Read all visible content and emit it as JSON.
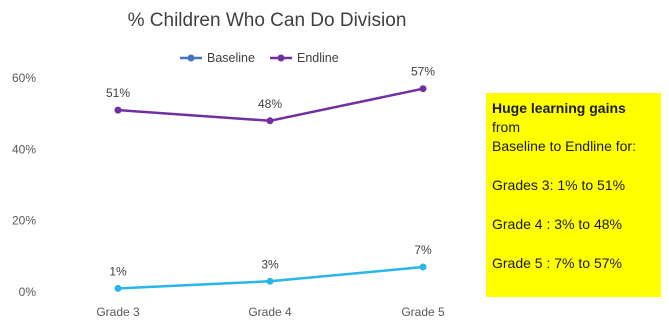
{
  "chart_data": {
    "type": "line",
    "title": "% Children Who Can Do Division",
    "categories": [
      "Grade 3",
      "Grade 4",
      "Grade 5"
    ],
    "series": [
      {
        "name": "Baseline",
        "values": [
          1,
          3,
          7
        ],
        "labels": [
          "1%",
          "3%",
          "7%"
        ],
        "color": "#29b6e8",
        "legend_color": "#4472c4"
      },
      {
        "name": "Endline",
        "values": [
          51,
          48,
          57
        ],
        "labels": [
          "51%",
          "48%",
          "57%"
        ],
        "color": "#7030a0"
      }
    ],
    "ylim": [
      0,
      60
    ],
    "yticks": [
      0,
      20,
      40,
      60
    ],
    "ytick_labels": [
      "0%",
      "20%",
      "40%",
      "60%"
    ],
    "grid": false,
    "legend_position": "top"
  },
  "callout": {
    "headline": "Huge learning gains",
    "headline_rest": " from",
    "line2": "Baseline to Endline for:",
    "items": [
      "Grades 3: 1% to 51%",
      "Grade 4 : 3% to 48%",
      "Grade 5 : 7% to 57%"
    ],
    "background": "#ffff00"
  }
}
